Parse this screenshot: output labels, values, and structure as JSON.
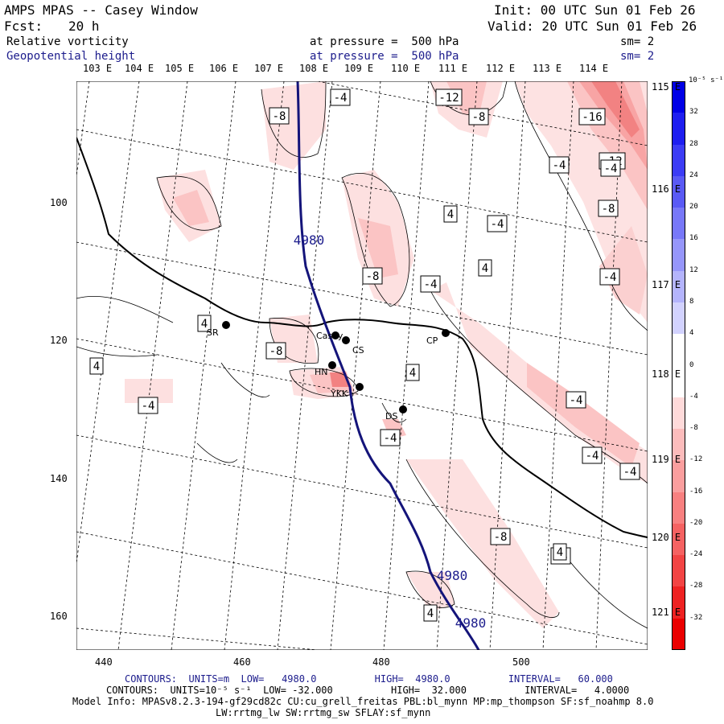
{
  "header": {
    "title": "AMPS MPAS -- Casey Window",
    "init": "Init: 00 UTC Sun 01 Feb 26",
    "fcst_label": "Fcst:",
    "fcst_value": "20 h",
    "valid": "Valid: 20 UTC Sun 01 Feb 26",
    "field1": "Relative vorticity",
    "field1_level": "at pressure =  500 hPa",
    "field1_sm": "sm= 2",
    "field2": "Geopotential height",
    "field2_level": "at pressure =  500 hPa",
    "field2_sm": "sm= 2"
  },
  "longitude_labels": [
    "103 E",
    "104 E",
    "105 E",
    "106 E",
    "107 E",
    "108 E",
    "109 E",
    "110 E",
    "111 E",
    "112 E",
    "113 E",
    "114 E"
  ],
  "latitude_labels": [
    "115 E",
    "116 E",
    "117 E",
    "118 E",
    "119 E",
    "120 E",
    "121 E"
  ],
  "x_axis": {
    "ticks": [
      "440",
      "460",
      "480",
      "500"
    ]
  },
  "y_axis": {
    "ticks": [
      "100",
      "120",
      "140",
      "160"
    ]
  },
  "colorbar": {
    "unit": "10⁻⁵ s⁻¹",
    "levels": [
      "32",
      "28",
      "24",
      "20",
      "16",
      "12",
      "8",
      "4",
      "0",
      "-4",
      "-8",
      "-12",
      "-16",
      "-20",
      "-24",
      "-28",
      "-32"
    ],
    "colors": [
      "#0000e6",
      "#1e1ef0",
      "#3c3cf5",
      "#5a5af5",
      "#7878f8",
      "#9696fa",
      "#b4b4fc",
      "#d2d2fe",
      "#ffffff",
      "#ffffff",
      "#fedada",
      "#fcbcbc",
      "#fa9e9e",
      "#f88080",
      "#f56262",
      "#f24444",
      "#ee2222",
      "#ea0000"
    ]
  },
  "stations": [
    {
      "name": "Casey"
    },
    {
      "name": "CS"
    },
    {
      "name": "SR"
    },
    {
      "name": "CP"
    },
    {
      "name": "HN"
    },
    {
      "name": "YKK"
    },
    {
      "name": "DS"
    }
  ],
  "contour_labels": [
    "-8",
    "-4",
    "-12",
    "-8",
    "-16",
    "-4",
    "-12",
    "4",
    "-4",
    "-8",
    "4",
    "-4",
    "-8",
    "-4",
    "-8",
    "4",
    "4",
    "-4",
    "4",
    "-4",
    "-4",
    "-4",
    "-4",
    "-8",
    "-4",
    "4",
    "-4",
    "4"
  ],
  "height_labels": [
    "4980",
    "4980",
    "4980"
  ],
  "footer": {
    "line1": "CONTOURS:  UNITS=m  LOW=   4980.0          HIGH=  4980.0          INTERVAL=   60.000",
    "line2": "CONTOURS:  UNITS=10⁻⁵ s⁻¹  LOW= -32.000          HIGH=  32.000          INTERVAL=   4.0000",
    "line3": "Model Info: MPASv8.2.3-194-gf29cd82c CU:cu_grell_freitas PBL:bl_mynn MP:mp_thompson SF:sf_noahmp 8.0",
    "line4": "LW:rrtmg_lw SW:rrtmg_sw SFLAY:sf_mynn"
  }
}
